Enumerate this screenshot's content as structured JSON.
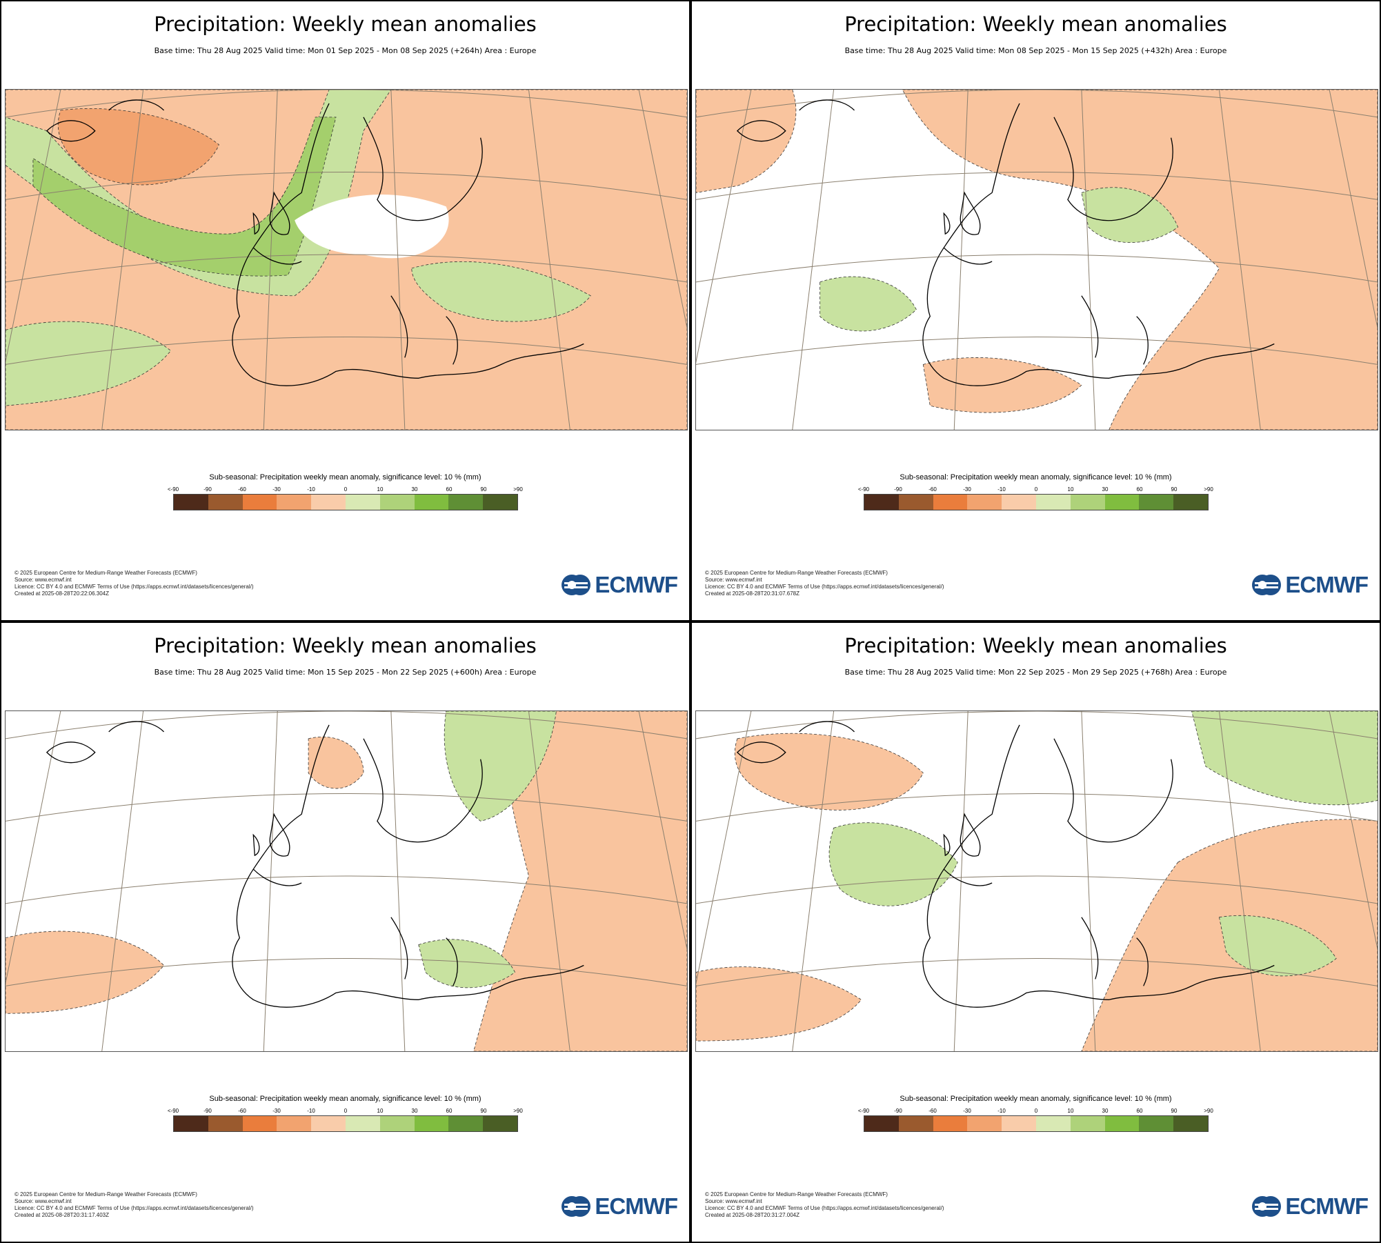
{
  "panels": [
    {
      "title": "Precipitation: Weekly mean anomalies",
      "subtitle": "Base time: Thu 28 Aug 2025 Valid time: Mon 01 Sep 2025 - Mon 08 Sep 2025 (+264h) Area : Europe",
      "colorbar_title": "Sub-seasonal: Precipitation weekly mean anomaly, significance level: 10 % (mm)",
      "footer": [
        "© 2025 European Centre for Medium-Range Weather Forecasts (ECMWF)",
        "Source: www.ecmwf.int",
        "Licence: CC BY 4.0 and ECMWF Terms of Use (https://apps.ecmwf.int/datasets/licences/general/)",
        "Created at 2025-08-28T20:22:06.304Z"
      ],
      "dominant_anomaly": "mixed: wet west Atlantic/UK/Scandinavia, dry Iceland and east"
    },
    {
      "title": "Precipitation: Weekly mean anomalies",
      "subtitle": "Base time: Thu 28 Aug 2025 Valid time: Mon 08 Sep 2025 - Mon 15 Sep 2025 (+432h) Area : Europe",
      "colorbar_title": "Sub-seasonal: Precipitation weekly mean anomaly, significance level: 10 % (mm)",
      "footer": [
        "© 2025 European Centre for Medium-Range Weather Forecasts (ECMWF)",
        "Source: www.ecmwf.int",
        "Licence: CC BY 4.0 and ECMWF Terms of Use (https://apps.ecmwf.int/datasets/licences/general/)",
        "Created at 2025-08-28T20:31:07.678Z"
      ],
      "dominant_anomaly": "mostly dry north and east, small wet patches"
    },
    {
      "title": "Precipitation: Weekly mean anomalies",
      "subtitle": "Base time: Thu 28 Aug 2025 Valid time: Mon 15 Sep 2025 - Mon 22 Sep 2025 (+600h) Area : Europe",
      "colorbar_title": "Sub-seasonal: Precipitation weekly mean anomaly, significance level: 10 % (mm)",
      "footer": [
        "© 2025 European Centre for Medium-Range Weather Forecasts (ECMWF)",
        "Source: www.ecmwf.int",
        "Licence: CC BY 4.0 and ECMWF Terms of Use (https://apps.ecmwf.int/datasets/licences/general/)",
        "Created at 2025-08-28T20:31:17.403Z"
      ],
      "dominant_anomaly": "largely neutral, dry east"
    },
    {
      "title": "Precipitation: Weekly mean anomalies",
      "subtitle": "Base time: Thu 28 Aug 2025 Valid time: Mon 22 Sep 2025 - Mon 29 Sep 2025 (+768h) Area : Europe",
      "colorbar_title": "Sub-seasonal: Precipitation weekly mean anomaly, significance level: 10 % (mm)",
      "footer": [
        "© 2025 European Centre for Medium-Range Weather Forecasts (ECMWF)",
        "Source: www.ecmwf.int",
        "Licence: CC BY 4.0 and ECMWF Terms of Use (https://apps.ecmwf.int/datasets/licences/general/)",
        "Created at 2025-08-28T20:31:27.004Z"
      ],
      "dominant_anomaly": "wet UK and east, dry Atlantic and south"
    }
  ],
  "colorbar": {
    "ticks": [
      "<-90",
      "-90",
      "-60",
      "-30",
      "-10",
      "0",
      "10",
      "30",
      "60",
      "90",
      ">90"
    ],
    "colors": [
      "#4e2a1a",
      "#9a5a2e",
      "#ea7d3c",
      "#f2a36f",
      "#f9ccaa",
      "#d9e9b4",
      "#aed27a",
      "#80bd3f",
      "#5f8f35",
      "#4a5e25"
    ]
  },
  "map_colors": {
    "dry_light": "#f9c49e",
    "dry_mid": "#f2a36f",
    "wet_light": "#c8e2a0",
    "wet_mid": "#a4cf6c",
    "coast": "#000000",
    "grid": "#8a7f6e"
  },
  "logo": {
    "text": "ECMWF"
  }
}
